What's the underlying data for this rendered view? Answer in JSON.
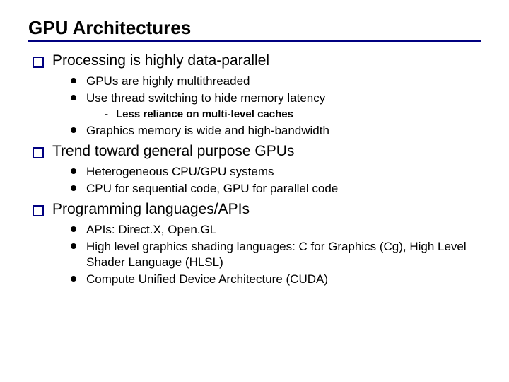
{
  "slide": {
    "title": "GPU Architectures",
    "title_fontsize": 26,
    "title_color": "#000000",
    "underline_color": "#000080",
    "bullet_square_color": "#000080",
    "bullet_dot_color": "#000000",
    "background_color": "#ffffff",
    "points": [
      {
        "text": "Processing is highly data-parallel",
        "children": [
          {
            "text": "GPUs are highly multithreaded"
          },
          {
            "text": "Use thread switching to hide memory latency",
            "children": [
              {
                "text": "Less reliance on multi-level caches"
              }
            ]
          },
          {
            "text": "Graphics memory is wide and high-bandwidth"
          }
        ]
      },
      {
        "text": "Trend toward general purpose GPUs",
        "children": [
          {
            "text": "Heterogeneous CPU/GPU systems"
          },
          {
            "text": "CPU for sequential code, GPU for parallel code"
          }
        ]
      },
      {
        "text": "Programming languages/APIs",
        "children": [
          {
            "text": "APIs: Direct.X, Open.GL"
          },
          {
            "text": "High level graphics shading languages: C for Graphics (Cg), High Level Shader Language (HLSL)"
          },
          {
            "text": "Compute Unified Device Architecture (CUDA)"
          }
        ]
      }
    ]
  }
}
